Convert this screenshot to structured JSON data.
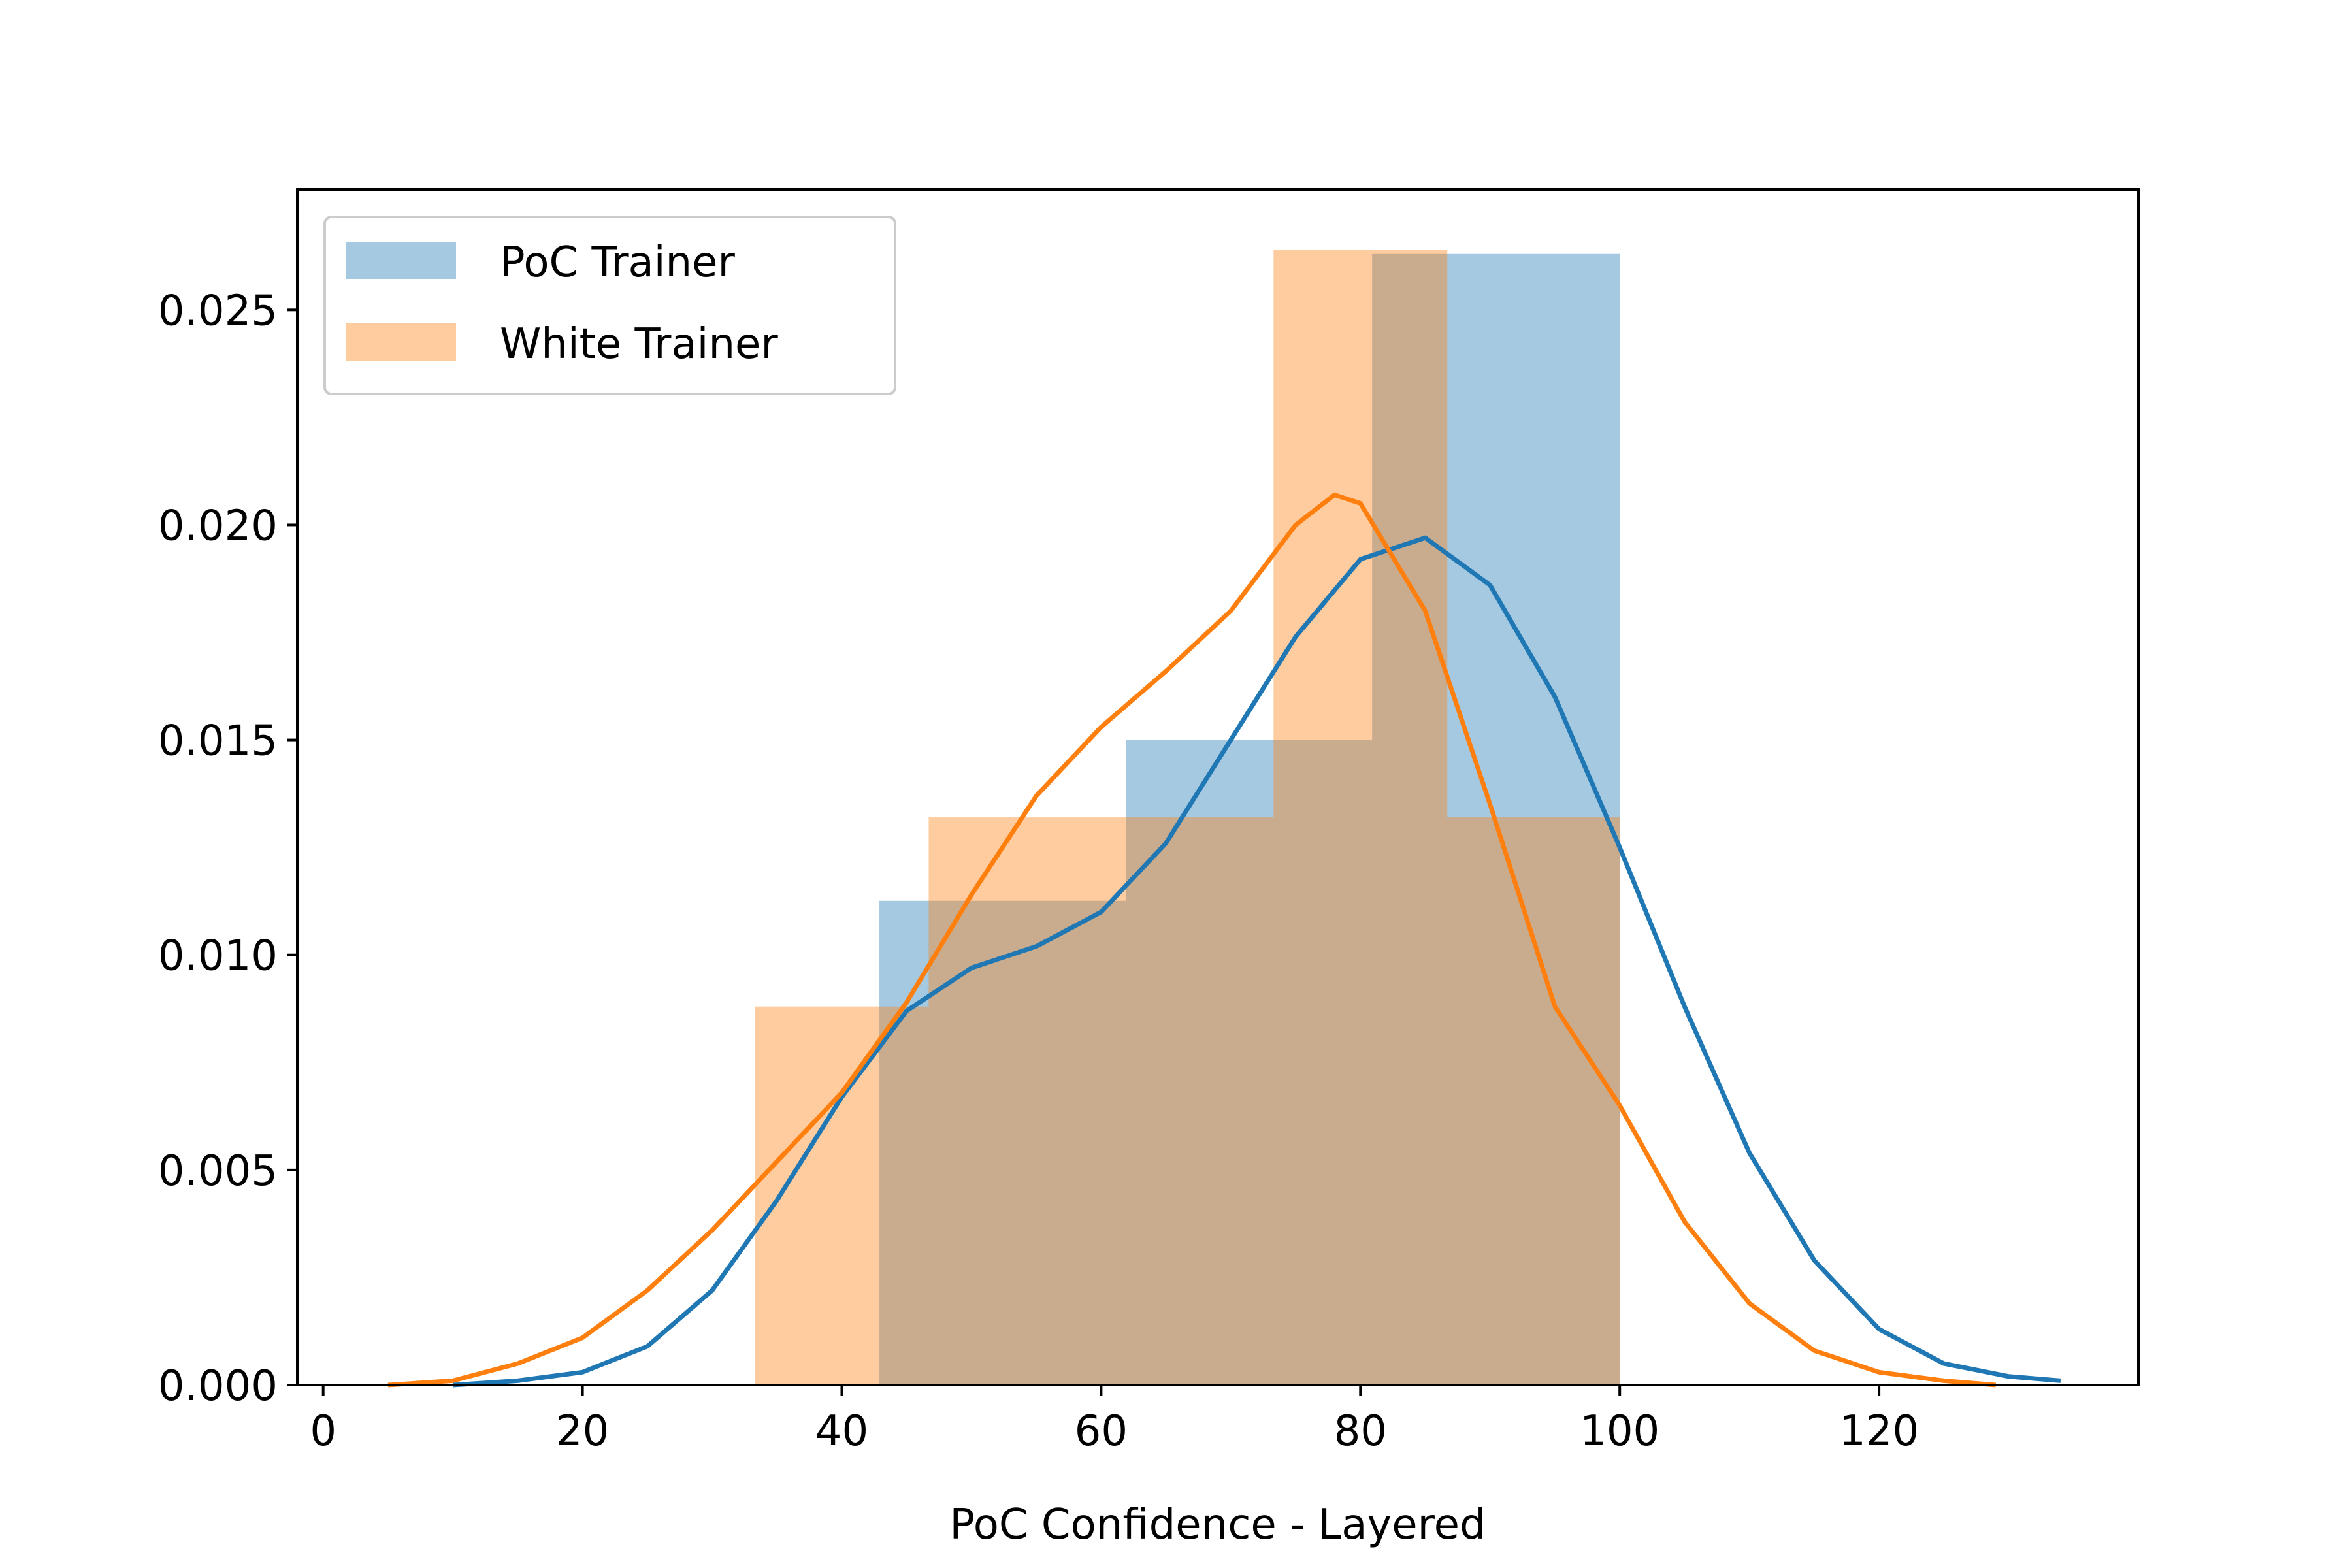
{
  "chart_data": {
    "type": "histogram",
    "title": "",
    "xlabel": "PoC Confidence - Layered",
    "ylabel": "",
    "xlim": [
      -2,
      140
    ],
    "ylim": [
      0,
      0.0278
    ],
    "xticks": [
      0,
      20,
      40,
      60,
      80,
      100,
      120
    ],
    "xtick_labels": [
      "0",
      "20",
      "40",
      "60",
      "80",
      "100",
      "120"
    ],
    "yticks": [
      0,
      0.005,
      0.01,
      0.015,
      0.02,
      0.025
    ],
    "ytick_labels": [
      "0.000",
      "0.005",
      "0.010",
      "0.015",
      "0.020",
      "0.025"
    ],
    "grid": false,
    "legend_position": "top-left",
    "series": [
      {
        "name": "PoC Trainer",
        "color": "#1f77b4",
        "bins": [
          {
            "x0": 42.9,
            "x1": 61.9,
            "density": 0.01126
          },
          {
            "x0": 61.9,
            "x1": 80.9,
            "density": 0.015
          },
          {
            "x0": 80.9,
            "x1": 100.0,
            "density": 0.0263
          }
        ],
        "kde": [
          [
            10,
            0
          ],
          [
            15,
            0.0001
          ],
          [
            20,
            0.0003
          ],
          [
            25,
            0.0009
          ],
          [
            30,
            0.0022
          ],
          [
            35,
            0.0043
          ],
          [
            40,
            0.0067
          ],
          [
            45,
            0.0087
          ],
          [
            50,
            0.0097
          ],
          [
            55,
            0.0102
          ],
          [
            60,
            0.011
          ],
          [
            65,
            0.0126
          ],
          [
            70,
            0.015
          ],
          [
            75,
            0.0174
          ],
          [
            80,
            0.0192
          ],
          [
            85,
            0.0197
          ],
          [
            90,
            0.0186
          ],
          [
            95,
            0.016
          ],
          [
            100,
            0.0125
          ],
          [
            105,
            0.0088
          ],
          [
            110,
            0.0054
          ],
          [
            115,
            0.0029
          ],
          [
            120,
            0.0013
          ],
          [
            125,
            0.0005
          ],
          [
            130,
            0.0002
          ],
          [
            134,
            0.0001
          ]
        ]
      },
      {
        "name": "White Trainer",
        "color": "#ff7f0e",
        "bins": [
          {
            "x0": 33.3,
            "x1": 46.7,
            "density": 0.0088
          },
          {
            "x0": 46.7,
            "x1": 73.3,
            "density": 0.0132
          },
          {
            "x0": 73.3,
            "x1": 86.7,
            "density": 0.0264
          },
          {
            "x0": 86.7,
            "x1": 100.0,
            "density": 0.0132
          }
        ],
        "kde": [
          [
            5,
            0
          ],
          [
            10,
            0.0001
          ],
          [
            15,
            0.0005
          ],
          [
            20,
            0.0011
          ],
          [
            25,
            0.0022
          ],
          [
            30,
            0.0036
          ],
          [
            35,
            0.0052
          ],
          [
            40,
            0.0068
          ],
          [
            45,
            0.0089
          ],
          [
            50,
            0.0114
          ],
          [
            55,
            0.0137
          ],
          [
            60,
            0.0153
          ],
          [
            65,
            0.0166
          ],
          [
            70,
            0.018
          ],
          [
            75,
            0.02
          ],
          [
            78,
            0.0207
          ],
          [
            80,
            0.0205
          ],
          [
            85,
            0.018
          ],
          [
            90,
            0.0135
          ],
          [
            95,
            0.0088
          ],
          [
            100,
            0.0065
          ],
          [
            105,
            0.0038
          ],
          [
            110,
            0.0019
          ],
          [
            115,
            0.0008
          ],
          [
            120,
            0.0003
          ],
          [
            125,
            0.0001
          ],
          [
            129,
            0
          ]
        ]
      }
    ]
  }
}
